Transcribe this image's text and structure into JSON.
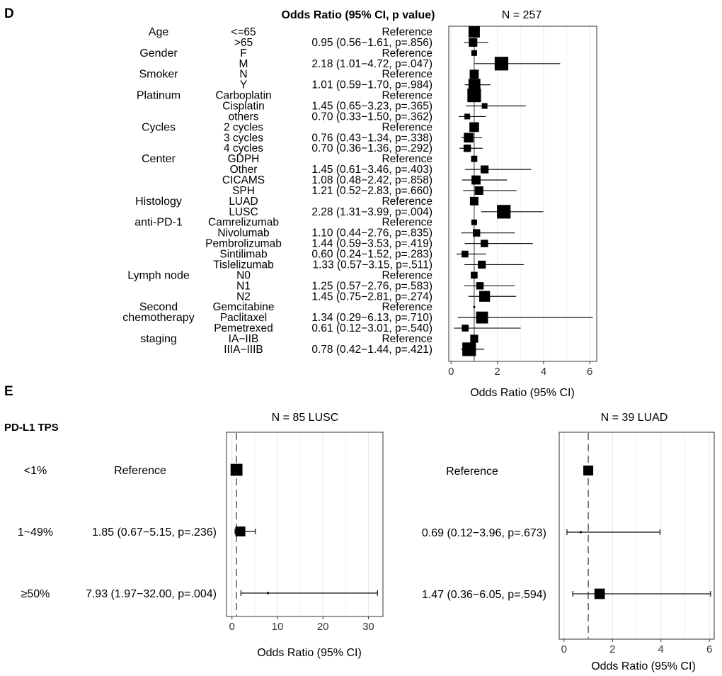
{
  "chart_data": [
    {
      "type": "forest",
      "panel_label": "D",
      "header": "Odds Ratio (95% CI, p value)",
      "title": "N = 257",
      "xlabel": "Odds Ratio (95% CI)",
      "xlim": [
        -0.1,
        6.3
      ],
      "xticks": [
        0,
        2,
        4,
        6
      ],
      "reference_line": 1,
      "grid": true,
      "rows": [
        {
          "group": "Age",
          "level": "<=65",
          "label": "Reference",
          "or": 1,
          "lo": null,
          "hi": null,
          "box": 1.0
        },
        {
          "group": "",
          "level": ">65",
          "label": "0.95 (0.56−1.61, p=.856)",
          "or": 0.95,
          "lo": 0.56,
          "hi": 1.61,
          "box": 0.75
        },
        {
          "group": "Gender",
          "level": "F",
          "label": "Reference",
          "or": 1,
          "lo": null,
          "hi": null,
          "box": 0.5
        },
        {
          "group": "",
          "level": "M",
          "label": "2.18 (1.01−4.72, p=.047)",
          "or": 2.18,
          "lo": 1.01,
          "hi": 4.72,
          "box": 1.2
        },
        {
          "group": "Smoker",
          "level": "N",
          "label": "Reference",
          "or": 1,
          "lo": null,
          "hi": null,
          "box": 0.8
        },
        {
          "group": "",
          "level": "Y",
          "label": "1.01 (0.59−1.70, p=.984)",
          "or": 1.01,
          "lo": 0.59,
          "hi": 1.7,
          "box": 1.05
        },
        {
          "group": "Platinum",
          "level": "Carboplatin",
          "label": "Reference",
          "or": 1,
          "lo": null,
          "hi": null,
          "box": 1.2
        },
        {
          "group": "",
          "level": "Cisplatin",
          "label": "1.45 (0.65−3.23, p=.365)",
          "or": 1.45,
          "lo": 0.65,
          "hi": 3.23,
          "box": 0.5
        },
        {
          "group": "",
          "level": "others",
          "label": "0.70 (0.33−1.50, p=.362)",
          "or": 0.7,
          "lo": 0.33,
          "hi": 1.5,
          "box": 0.5
        },
        {
          "group": "Cycles",
          "level": "2 cycles",
          "label": "Reference",
          "or": 1,
          "lo": null,
          "hi": null,
          "box": 0.85
        },
        {
          "group": "",
          "level": "3 cycles",
          "label": "0.76 (0.43−1.34, p=.338)",
          "or": 0.76,
          "lo": 0.43,
          "hi": 1.34,
          "box": 0.85
        },
        {
          "group": "",
          "level": "4 cycles",
          "label": "0.70 (0.36−1.36, p=.292)",
          "or": 0.7,
          "lo": 0.36,
          "hi": 1.36,
          "box": 0.65
        },
        {
          "group": "Center",
          "level": "GDPH",
          "label": "Reference",
          "or": 1,
          "lo": null,
          "hi": null,
          "box": 0.55
        },
        {
          "group": "",
          "level": "Other",
          "label": "1.45 (0.61−3.46, p=.403)",
          "or": 1.45,
          "lo": 0.61,
          "hi": 3.46,
          "box": 0.7
        },
        {
          "group": "",
          "level": "CICAMS",
          "label": "1.08 (0.48−2.42, p=.858)",
          "or": 1.08,
          "lo": 0.48,
          "hi": 2.42,
          "box": 0.8
        },
        {
          "group": "",
          "level": "SPH",
          "label": "1.21 (0.52−2.83, p=.660)",
          "or": 1.21,
          "lo": 0.52,
          "hi": 2.83,
          "box": 0.75
        },
        {
          "group": "Histology",
          "level": "LUAD",
          "label": "Reference",
          "or": 1,
          "lo": null,
          "hi": null,
          "box": 0.75
        },
        {
          "group": "",
          "level": "LUSC",
          "label": "2.28 (1.31−3.99, p=.004)",
          "or": 2.28,
          "lo": 1.31,
          "hi": 3.99,
          "box": 1.2
        },
        {
          "group": "anti-PD-1",
          "level": "Camrelizumab",
          "label": "Reference",
          "or": 1,
          "lo": null,
          "hi": null,
          "box": 0.5
        },
        {
          "group": "",
          "level": "Nivolumab",
          "label": "1.10 (0.44−2.76, p=.835)",
          "or": 1.1,
          "lo": 0.44,
          "hi": 2.76,
          "box": 0.65
        },
        {
          "group": "",
          "level": "Pembrolizumab",
          "label": "1.44 (0.59−3.53, p=.419)",
          "or": 1.44,
          "lo": 0.59,
          "hi": 3.53,
          "box": 0.65
        },
        {
          "group": "",
          "level": "Sintilimab",
          "label": "0.60 (0.24−1.52, p=.283)",
          "or": 0.6,
          "lo": 0.24,
          "hi": 1.52,
          "box": 0.6
        },
        {
          "group": "",
          "level": "Tislelizumab",
          "label": "1.33 (0.57−3.15, p=.511)",
          "or": 1.33,
          "lo": 0.57,
          "hi": 3.15,
          "box": 0.7
        },
        {
          "group": "Lymph node",
          "level": "N0",
          "label": "Reference",
          "or": 1,
          "lo": null,
          "hi": null,
          "box": 0.6
        },
        {
          "group": "",
          "level": "N1",
          "label": "1.25 (0.57−2.76, p=.583)",
          "or": 1.25,
          "lo": 0.57,
          "hi": 2.76,
          "box": 0.65
        },
        {
          "group": "",
          "level": "N2",
          "label": "1.45 (0.75−2.81, p=.274)",
          "or": 1.45,
          "lo": 0.75,
          "hi": 2.81,
          "box": 0.95
        },
        {
          "group": "Second",
          "level": "Gemcitabine",
          "label": "Reference",
          "or": 1,
          "lo": null,
          "hi": null,
          "box": 0.18
        },
        {
          "group": "chemotherapy",
          "level": "Paclitaxel",
          "label": "1.34 (0.29−6.13, p=.710)",
          "or": 1.34,
          "lo": 0.29,
          "hi": 6.13,
          "box": 1.05
        },
        {
          "group": "",
          "level": "Pemetrexed",
          "label": "0.61 (0.12−3.01, p=.540)",
          "or": 0.61,
          "lo": 0.12,
          "hi": 3.01,
          "box": 0.6
        },
        {
          "group": "staging",
          "level": "IA−IIB",
          "label": "Reference",
          "or": 1,
          "lo": null,
          "hi": null,
          "box": 0.7
        },
        {
          "group": "",
          "level": "IIIA−IIIB",
          "label": "0.78 (0.42−1.44, p=.421)",
          "or": 0.78,
          "lo": 0.42,
          "hi": 1.44,
          "box": 1.2
        }
      ]
    },
    {
      "type": "forest",
      "panel_label": "E",
      "row_header": "PD-L1 TPS",
      "title": "N = 85 LUSC",
      "xlabel": "Odds Ratio (95% CI)",
      "xlim": [
        -1.2,
        33.2
      ],
      "xticks": [
        0,
        10,
        20,
        30
      ],
      "reference_line": 1,
      "grid": true,
      "rows": [
        {
          "level": "<1%",
          "label": "Reference",
          "or": 1,
          "lo": null,
          "hi": null,
          "box": 1.2
        },
        {
          "level": "1~49%",
          "label": "1.85 (0.67−5.15, p=.236)",
          "or": 1.85,
          "lo": 0.67,
          "hi": 5.15,
          "box": 1.0
        },
        {
          "level": "≥50%",
          "label": "7.93 (1.97−32.00, p=.004)",
          "or": 7.93,
          "lo": 1.97,
          "hi": 32.0,
          "box": 0.2
        }
      ]
    },
    {
      "type": "forest",
      "title": "N = 39 LUAD",
      "xlabel": "Odds Ratio (95% CI)",
      "xlim": [
        -0.2,
        6.2
      ],
      "xticks": [
        0,
        2,
        4,
        6
      ],
      "reference_line": 1,
      "grid": true,
      "rows": [
        {
          "label": "Reference",
          "or": 1,
          "lo": null,
          "hi": null,
          "box": 1.0
        },
        {
          "label": "0.69 (0.12−3.96, p=.673)",
          "or": 0.69,
          "lo": 0.12,
          "hi": 3.96,
          "box": 0.2
        },
        {
          "label": "1.47 (0.36−6.05, p=.594)",
          "or": 1.47,
          "lo": 0.36,
          "hi": 6.05,
          "box": 1.05
        }
      ]
    }
  ]
}
